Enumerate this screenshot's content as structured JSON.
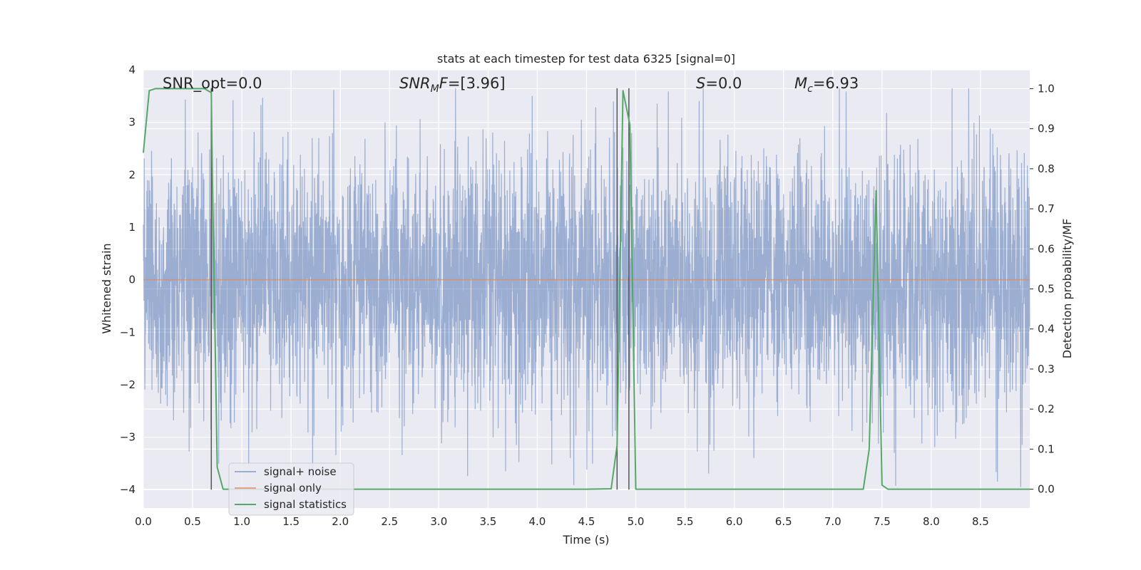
{
  "chart_data": {
    "type": "line",
    "title": "stats at each timestep for test data 6325 [signal=0]",
    "xlabel": "Time (s)",
    "ylabel": "Whitened strain",
    "y2label": "Detection probability/MF",
    "xlim": [
      0.0,
      9.0
    ],
    "ylim": [
      -4.35,
      4.0
    ],
    "y2lim": [
      -0.047,
      1.047
    ],
    "grid": true,
    "legend_position": "lower-left",
    "x_ticks": [
      0.0,
      0.5,
      1.0,
      1.5,
      2.0,
      2.5,
      3.0,
      3.5,
      4.0,
      4.5,
      5.0,
      5.5,
      6.0,
      6.5,
      7.0,
      7.5,
      8.0,
      8.5
    ],
    "x_tick_labels": [
      "0.0",
      "0.5",
      "1.0",
      "1.5",
      "2.0",
      "2.5",
      "3.0",
      "3.5",
      "4.0",
      "4.5",
      "5.0",
      "5.5",
      "6.0",
      "6.5",
      "7.0",
      "7.5",
      "8.0",
      "8.5"
    ],
    "y_ticks": [
      4,
      3,
      2,
      1,
      0,
      -1,
      -2,
      -3,
      -4
    ],
    "y_tick_labels": [
      "4",
      "3",
      "2",
      "1",
      "0",
      "−1",
      "−2",
      "−3",
      "−4"
    ],
    "y2_ticks": [
      1.0,
      0.9,
      0.8,
      0.7,
      0.6,
      0.5,
      0.4,
      0.3,
      0.2,
      0.1,
      0.0
    ],
    "y2_tick_labels": [
      "1.0",
      "0.9",
      "0.8",
      "0.7",
      "0.6",
      "0.5",
      "0.4",
      "0.3",
      "0.2",
      "0.1",
      "0.0"
    ],
    "annotations": [
      {
        "text": "SNR_opt=0.0",
        "x": 0.2,
        "y": 3.7
      },
      {
        "text": "SNR_MF=[3.96]",
        "x": 2.6,
        "y": 3.7
      },
      {
        "text": "S=0.0",
        "x": 5.6,
        "y": 3.7
      },
      {
        "text": "M_c=6.93",
        "x": 6.6,
        "y": 3.7
      }
    ],
    "vlines": [
      {
        "x": 0.69,
        "y_from": -4.0,
        "y_to": 3.65
      },
      {
        "x": 4.81,
        "y_from": -4.0,
        "y_to": 3.65
      },
      {
        "x": 4.93,
        "y_from": -4.0,
        "y_to": 3.65
      }
    ],
    "series": [
      {
        "name": "signal+ noise",
        "color": "#4c72b0",
        "axis": "left",
        "note": "dense noise trace; roughly ±1.7 whitened strain, spikes to ±3",
        "amplitude": 1.7
      },
      {
        "name": "signal only",
        "color": "#dd8452",
        "axis": "left",
        "x": [
          0.0,
          9.0
        ],
        "y": [
          0.0,
          0.0
        ]
      },
      {
        "name": "signal statistics",
        "color": "#55a868",
        "axis": "right",
        "x": [
          0.0,
          0.06,
          0.12,
          0.25,
          0.5,
          0.62,
          0.69,
          0.7,
          0.75,
          0.81,
          1.0,
          2.0,
          3.0,
          4.0,
          4.5,
          4.75,
          4.81,
          4.87,
          4.94,
          5.0,
          5.5,
          6.0,
          7.0,
          7.31,
          7.37,
          7.44,
          7.5,
          7.56,
          8.0,
          9.0
        ],
        "y": [
          0.84,
          0.995,
          1.0,
          1.0,
          1.0,
          1.0,
          0.99,
          0.8,
          0.055,
          0.0,
          0.0,
          0.0,
          0.0,
          0.0,
          0.0,
          0.001,
          0.11,
          0.995,
          0.91,
          0.0,
          0.0,
          0.0,
          0.0,
          0.0,
          0.1,
          0.745,
          0.01,
          0.0,
          0.0,
          0.0
        ]
      }
    ]
  }
}
